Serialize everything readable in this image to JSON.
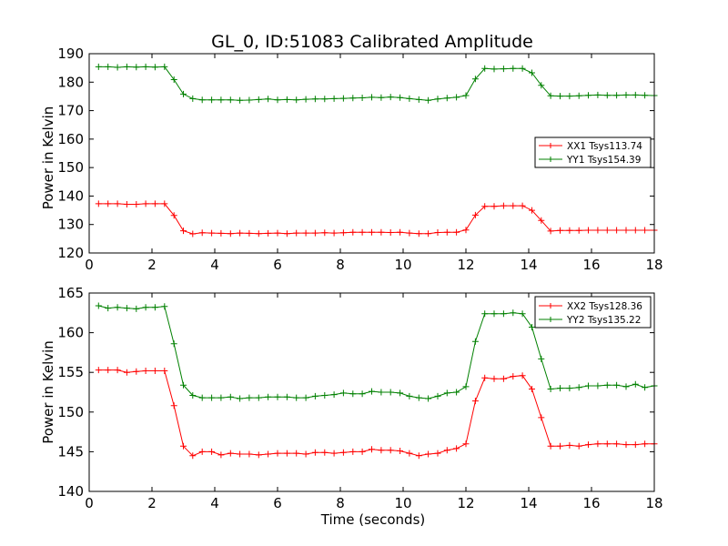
{
  "chart_data": [
    {
      "type": "line",
      "title": "GL_0, ID:51083 Calibrated Amplitude",
      "xlabel": "",
      "ylabel": "Power in Kelvin",
      "xlim": [
        0,
        18
      ],
      "ylim": [
        120,
        190
      ],
      "xticks": [
        "0",
        "2",
        "4",
        "6",
        "8",
        "10",
        "12",
        "14",
        "16",
        "18"
      ],
      "yticks": [
        "120",
        "130",
        "140",
        "150",
        "160",
        "170",
        "180",
        "190"
      ],
      "legend_position": "center-right",
      "x": [
        0.3,
        0.6,
        0.9,
        1.2,
        1.5,
        1.8,
        2.1,
        2.4,
        2.7,
        3.0,
        3.3,
        3.6,
        3.9,
        4.2,
        4.5,
        4.8,
        5.1,
        5.4,
        5.7,
        6.0,
        6.3,
        6.6,
        6.9,
        7.2,
        7.5,
        7.8,
        8.1,
        8.4,
        8.7,
        9.0,
        9.3,
        9.6,
        9.9,
        10.2,
        10.5,
        10.8,
        11.1,
        11.4,
        11.7,
        12.0,
        12.3,
        12.6,
        12.9,
        13.2,
        13.5,
        13.8,
        14.1,
        14.4,
        14.7,
        15.0,
        15.3,
        15.6,
        15.9,
        16.2,
        16.5,
        16.8,
        17.1,
        17.4,
        17.7,
        18.0
      ],
      "series": [
        {
          "name": "XX1 Tsys113.74",
          "color": "#ff0000",
          "values": [
            137.3,
            137.3,
            137.3,
            137.1,
            137.1,
            137.3,
            137.3,
            137.3,
            133.2,
            127.8,
            126.7,
            127.1,
            127.0,
            126.9,
            126.8,
            127.0,
            126.9,
            126.8,
            126.9,
            127.0,
            126.8,
            127.0,
            127.0,
            127.0,
            127.1,
            127.0,
            127.1,
            127.3,
            127.3,
            127.3,
            127.3,
            127.2,
            127.3,
            127.0,
            126.8,
            126.8,
            127.2,
            127.3,
            127.3,
            128.1,
            133.3,
            136.4,
            136.4,
            136.6,
            136.6,
            136.6,
            135.0,
            131.4,
            127.7,
            127.9,
            127.9,
            127.9,
            128.0,
            128.0,
            128.0,
            128.0,
            128.0,
            128.0,
            128.0,
            128.0
          ]
        },
        {
          "name": "YY1 Tsys154.39",
          "color": "#008000",
          "values": [
            185.4,
            185.4,
            185.2,
            185.4,
            185.3,
            185.4,
            185.3,
            185.4,
            180.9,
            175.8,
            174.2,
            173.8,
            173.8,
            173.8,
            173.8,
            173.6,
            173.7,
            173.9,
            174.1,
            173.8,
            173.9,
            173.8,
            174.0,
            174.1,
            174.1,
            174.2,
            174.3,
            174.4,
            174.5,
            174.7,
            174.6,
            174.8,
            174.6,
            174.2,
            173.9,
            173.6,
            174.1,
            174.4,
            174.7,
            175.3,
            181.1,
            184.8,
            184.6,
            184.7,
            184.8,
            184.8,
            183.3,
            178.9,
            175.2,
            175.1,
            175.1,
            175.2,
            175.4,
            175.5,
            175.4,
            175.4,
            175.5,
            175.5,
            175.4,
            175.3
          ]
        }
      ]
    },
    {
      "type": "line",
      "title": "",
      "xlabel": "Time (seconds)",
      "ylabel": "Power in Kelvin",
      "xlim": [
        0,
        18
      ],
      "ylim": [
        140,
        165
      ],
      "xticks": [
        "0",
        "2",
        "4",
        "6",
        "8",
        "10",
        "12",
        "14",
        "16",
        "18"
      ],
      "yticks": [
        "140",
        "145",
        "150",
        "155",
        "160",
        "165"
      ],
      "legend_position": "top-right",
      "x": [
        0.3,
        0.6,
        0.9,
        1.2,
        1.5,
        1.8,
        2.1,
        2.4,
        2.7,
        3.0,
        3.3,
        3.6,
        3.9,
        4.2,
        4.5,
        4.8,
        5.1,
        5.4,
        5.7,
        6.0,
        6.3,
        6.6,
        6.9,
        7.2,
        7.5,
        7.8,
        8.1,
        8.4,
        8.7,
        9.0,
        9.3,
        9.6,
        9.9,
        10.2,
        10.5,
        10.8,
        11.1,
        11.4,
        11.7,
        12.0,
        12.3,
        12.6,
        12.9,
        13.2,
        13.5,
        13.8,
        14.1,
        14.4,
        14.7,
        15.0,
        15.3,
        15.6,
        15.9,
        16.2,
        16.5,
        16.8,
        17.1,
        17.4,
        17.7,
        18.0
      ],
      "series": [
        {
          "name": "XX2 Tsys128.36",
          "color": "#ff0000",
          "values": [
            155.3,
            155.3,
            155.3,
            155.0,
            155.1,
            155.2,
            155.2,
            155.2,
            150.8,
            145.7,
            144.5,
            145.0,
            145.0,
            144.6,
            144.8,
            144.7,
            144.7,
            144.6,
            144.7,
            144.8,
            144.8,
            144.8,
            144.7,
            144.9,
            144.9,
            144.8,
            144.9,
            145.0,
            145.0,
            145.3,
            145.2,
            145.2,
            145.1,
            144.8,
            144.5,
            144.7,
            144.8,
            145.2,
            145.4,
            146.0,
            151.4,
            154.3,
            154.2,
            154.2,
            154.5,
            154.6,
            152.9,
            149.3,
            145.7,
            145.7,
            145.8,
            145.7,
            145.9,
            146.0,
            146.0,
            146.0,
            145.9,
            145.9,
            146.0,
            146.0
          ]
        },
        {
          "name": "YY2 Tsys135.22",
          "color": "#008000",
          "values": [
            163.4,
            163.1,
            163.2,
            163.1,
            163.0,
            163.2,
            163.2,
            163.3,
            158.6,
            153.4,
            152.1,
            151.8,
            151.8,
            151.8,
            151.9,
            151.7,
            151.8,
            151.8,
            151.9,
            151.9,
            151.9,
            151.8,
            151.8,
            152.0,
            152.1,
            152.2,
            152.4,
            152.3,
            152.3,
            152.6,
            152.5,
            152.5,
            152.4,
            152.0,
            151.8,
            151.7,
            152.0,
            152.4,
            152.5,
            153.2,
            158.9,
            162.4,
            162.4,
            162.4,
            162.5,
            162.4,
            160.7,
            156.7,
            152.9,
            153.0,
            153.0,
            153.1,
            153.3,
            153.3,
            153.4,
            153.4,
            153.2,
            153.5,
            153.1,
            153.3
          ]
        }
      ]
    }
  ]
}
